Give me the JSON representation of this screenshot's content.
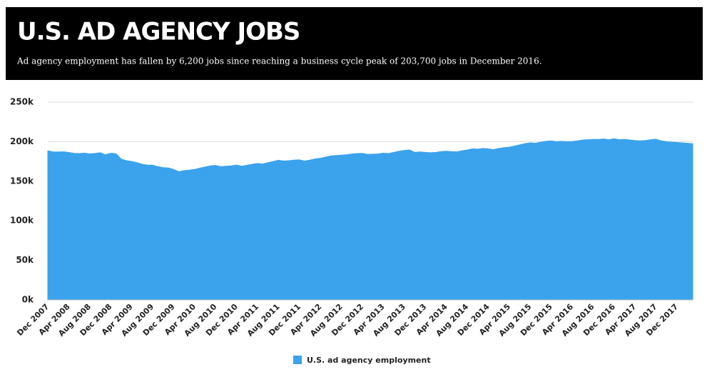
{
  "chart_data": {
    "type": "area",
    "title": "U.S. AD AGENCY JOBS",
    "subtitle": "Ad agency employment has fallen by 6,200 jobs since reaching a business cycle peak of 203,700 jobs in December 2016.",
    "categories": [
      "Dec 2007",
      null,
      null,
      null,
      "Apr 2008",
      null,
      null,
      null,
      "Aug 2008",
      null,
      null,
      null,
      "Dec 2008",
      null,
      null,
      null,
      "Apr 2009",
      null,
      null,
      null,
      "Aug 2009",
      null,
      null,
      null,
      "Dec 2009",
      null,
      null,
      null,
      "Apr 2010",
      null,
      null,
      null,
      "Aug 2010",
      null,
      null,
      null,
      "Dec 2010",
      null,
      null,
      null,
      "Apr 2011",
      null,
      null,
      null,
      "Aug 2011",
      null,
      null,
      null,
      "Dec 2011",
      null,
      null,
      null,
      "Apr 2012",
      null,
      null,
      null,
      "Aug 2012",
      null,
      null,
      null,
      "Dec 2012",
      null,
      null,
      null,
      "Apr 2013",
      null,
      null,
      null,
      "Aug 2013",
      null,
      null,
      null,
      "Dec 2013",
      null,
      null,
      null,
      "Apr 2014",
      null,
      null,
      null,
      "Aug 2014",
      null,
      null,
      null,
      "Dec 2014",
      null,
      null,
      null,
      "Apr 2015",
      null,
      null,
      null,
      "Aug 2015",
      null,
      null,
      null,
      "Dec 2015",
      null,
      null,
      null,
      "Apr 2016",
      null,
      null,
      null,
      "Aug 2016",
      null,
      null,
      null,
      "Dec 2016",
      null,
      null,
      null,
      "Apr 2017",
      null,
      null,
      null,
      "Aug 2017",
      null,
      null,
      null,
      "Dec 2017",
      null,
      null,
      null
    ],
    "series": [
      {
        "name": "U.S. ad agency employment",
        "color": "#3ba3ec",
        "values": [
          188500,
          187200,
          187000,
          187300,
          186400,
          185200,
          185000,
          185600,
          184600,
          185100,
          186000,
          183500,
          185500,
          184800,
          178000,
          176000,
          175000,
          173500,
          171500,
          170500,
          170400,
          168500,
          167200,
          166800,
          165000,
          162000,
          163500,
          164000,
          165000,
          166500,
          168000,
          169500,
          170000,
          168500,
          169000,
          169500,
          170500,
          169000,
          170200,
          171500,
          172500,
          171800,
          173500,
          175000,
          176500,
          175500,
          176000,
          176800,
          177000,
          175500,
          176800,
          178200,
          179000,
          180500,
          182000,
          182500,
          183000,
          183600,
          184500,
          185000,
          185200,
          184000,
          184200,
          184500,
          185500,
          185000,
          186500,
          188000,
          189000,
          189500,
          186500,
          187000,
          186500,
          186000,
          186500,
          187500,
          188000,
          187500,
          187200,
          188500,
          189500,
          191000,
          190500,
          191500,
          191000,
          190000,
          191500,
          192500,
          193000,
          194500,
          196000,
          197500,
          198500,
          198000,
          199500,
          200500,
          201000,
          200000,
          200500,
          200000,
          200200,
          201000,
          202000,
          202500,
          203000,
          202800,
          203500,
          202500,
          203700,
          202500,
          203000,
          202200,
          201500,
          201000,
          201500,
          202500,
          203200,
          201000,
          200000,
          199500,
          199000,
          198500,
          198000,
          197500
        ]
      }
    ],
    "ylim": [
      0,
      250000
    ],
    "yticks": [
      {
        "value": 0,
        "label": "0k"
      },
      {
        "value": 50000,
        "label": "50k"
      },
      {
        "value": 100000,
        "label": "100k"
      },
      {
        "value": 150000,
        "label": "150k"
      },
      {
        "value": 200000,
        "label": "200k"
      },
      {
        "value": 250000,
        "label": "250k"
      }
    ],
    "grid": true,
    "legend": "bottom"
  }
}
